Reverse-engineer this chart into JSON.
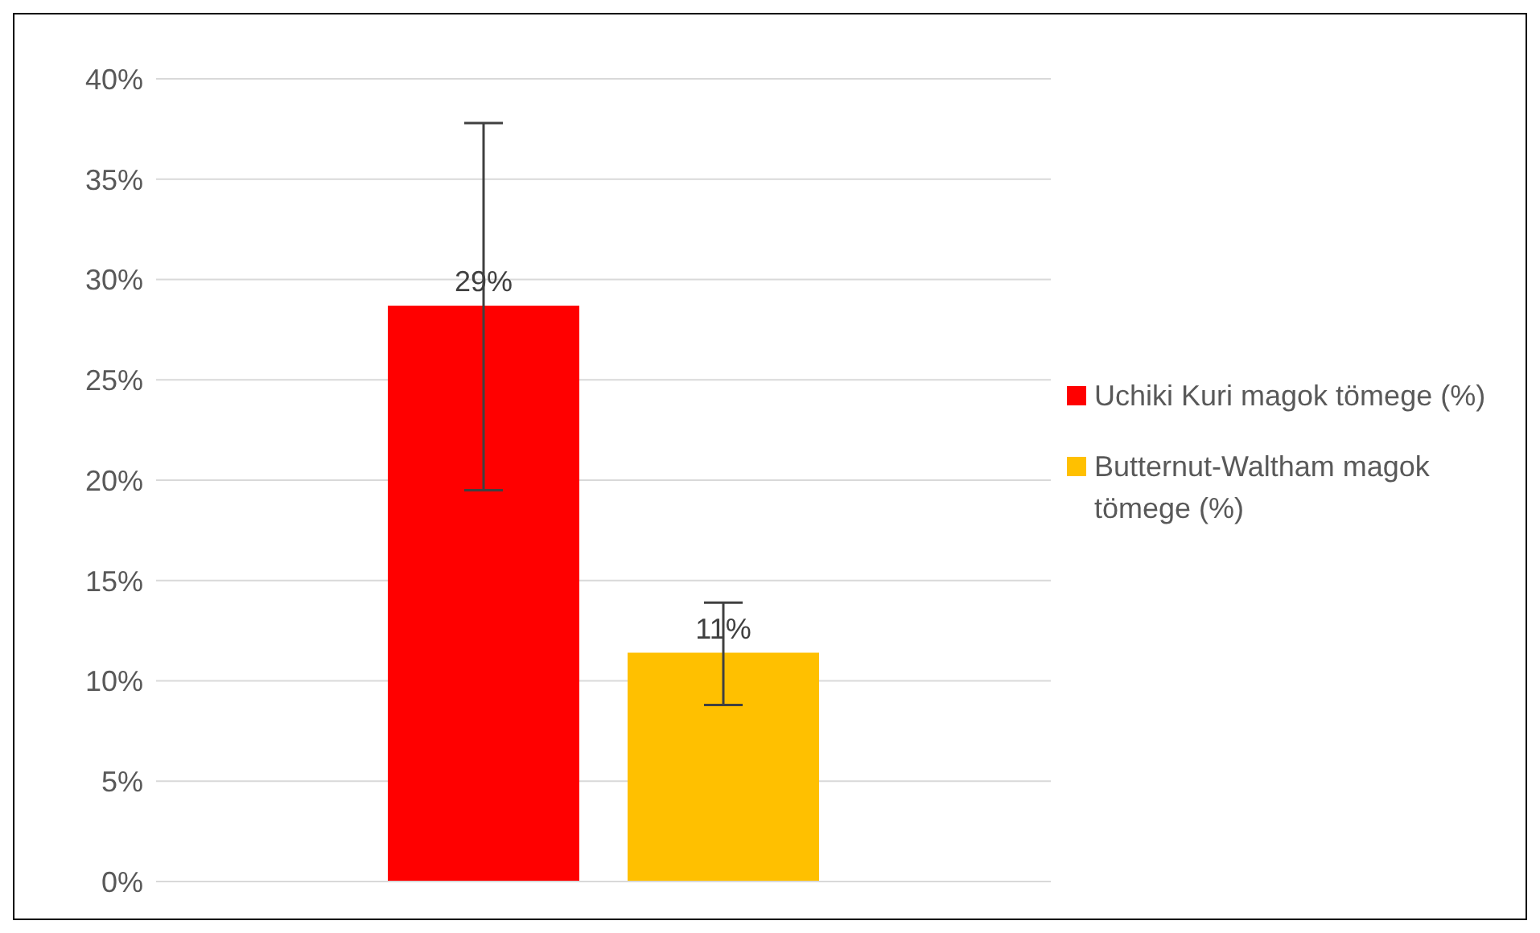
{
  "chart_data": {
    "type": "bar",
    "categories": [
      null
    ],
    "series": [
      {
        "name": "Uchiki Kuri magok tömege (%)",
        "color": "#ff0000",
        "values": [
          28.7
        ],
        "errors": [
          [
            19.5,
            37.8
          ]
        ],
        "value_labels": [
          "29%"
        ]
      },
      {
        "name": "Butternut-Waltham magok tömege (%)",
        "color": "#ffc000",
        "values": [
          11.4
        ],
        "errors": [
          [
            8.8,
            13.9
          ]
        ],
        "value_labels": [
          "11%"
        ]
      }
    ],
    "ylim": [
      0,
      40
    ],
    "yticks": [
      {
        "value": 0,
        "label": "0%"
      },
      {
        "value": 5,
        "label": "5%"
      },
      {
        "value": 10,
        "label": "10%"
      },
      {
        "value": 15,
        "label": "15%"
      },
      {
        "value": 20,
        "label": "20%"
      },
      {
        "value": 25,
        "label": "25%"
      },
      {
        "value": 30,
        "label": "30%"
      },
      {
        "value": 35,
        "label": "35%"
      },
      {
        "value": 40,
        "label": "40%"
      }
    ],
    "grid": "y",
    "legend": "right"
  }
}
